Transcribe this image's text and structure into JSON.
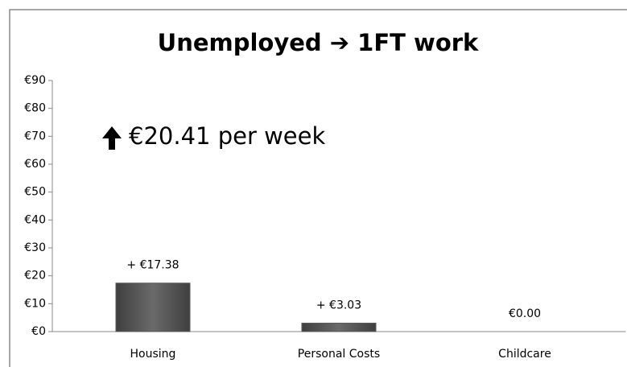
{
  "chart_data": {
    "type": "bar",
    "title": "Unemployed ➔ 1FT work",
    "annotation": "€20.41 per week",
    "categories": [
      "Housing",
      "Personal Costs",
      "Childcare"
    ],
    "values": [
      17.38,
      3.03,
      0
    ],
    "value_labels": [
      "+ €17.38",
      "+ €3.03",
      "€0.00"
    ],
    "color": "#5a5a5a",
    "ylim": [
      0,
      90
    ],
    "yticks": [
      {
        "value": 0,
        "label": "€0"
      },
      {
        "value": 10,
        "label": "€10"
      },
      {
        "value": 20,
        "label": "€20"
      },
      {
        "value": 30,
        "label": "€30"
      },
      {
        "value": 40,
        "label": "€40"
      },
      {
        "value": 50,
        "label": "€50"
      },
      {
        "value": 60,
        "label": "€60"
      },
      {
        "value": 70,
        "label": "€70"
      },
      {
        "value": 80,
        "label": "€80"
      },
      {
        "value": 90,
        "label": "€90"
      }
    ],
    "grid": false
  }
}
